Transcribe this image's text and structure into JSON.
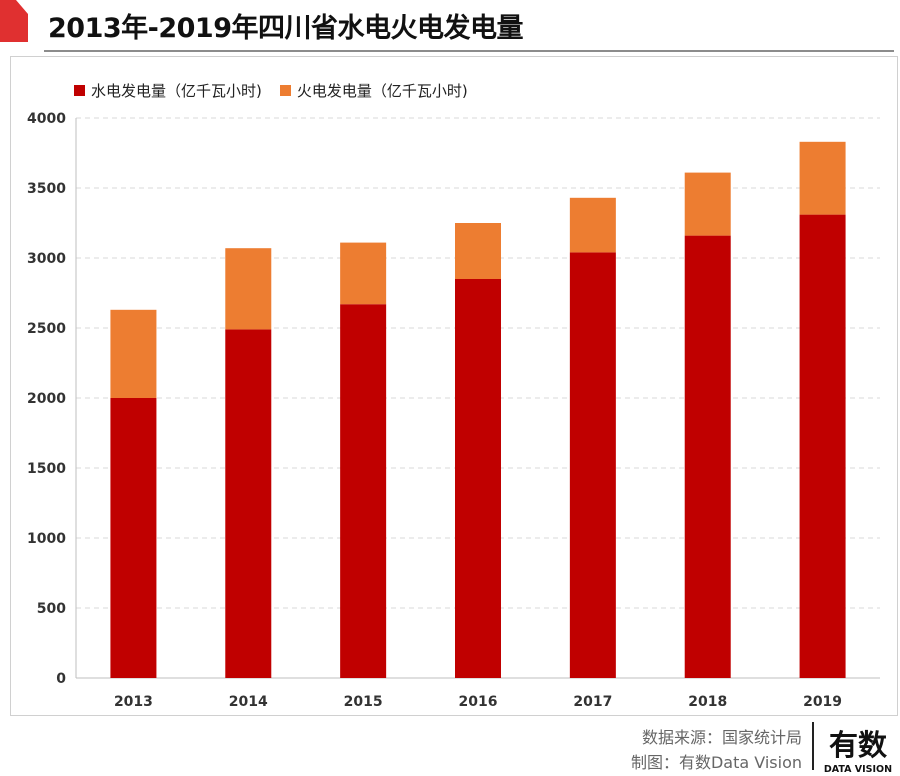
{
  "header": {
    "title": "2013年-2019年四川省水电火电发电量"
  },
  "colors": {
    "hydro": "#c00000",
    "thermal": "#ed7d31",
    "accent": "#e03030"
  },
  "legend": [
    {
      "label": "水电发电量（亿千瓦小时)",
      "color": "#c00000"
    },
    {
      "label": "火电发电量（亿千瓦小时)",
      "color": "#ed7d31"
    }
  ],
  "chart_data": {
    "type": "bar",
    "stacked": true,
    "categories": [
      "2013",
      "2014",
      "2015",
      "2016",
      "2017",
      "2018",
      "2019"
    ],
    "series": [
      {
        "name": "水电发电量（亿千瓦小时)",
        "values": [
          2000,
          2490,
          2670,
          2850,
          3040,
          3160,
          3310
        ]
      },
      {
        "name": "火电发电量（亿千瓦小时)",
        "values": [
          630,
          580,
          440,
          400,
          390,
          450,
          520
        ]
      }
    ],
    "ylim": [
      0,
      4000
    ],
    "yticks": [
      "0",
      "500",
      "1000",
      "1500",
      "2000",
      "2500",
      "3000",
      "3500",
      "4000"
    ],
    "grid": true,
    "legend_position": "top-left"
  },
  "footer": {
    "source": "数据来源：国家统计局",
    "credit": "制图：有数Data Vision"
  },
  "logo": {
    "text": "有数",
    "subtext": "DATA VISION"
  }
}
